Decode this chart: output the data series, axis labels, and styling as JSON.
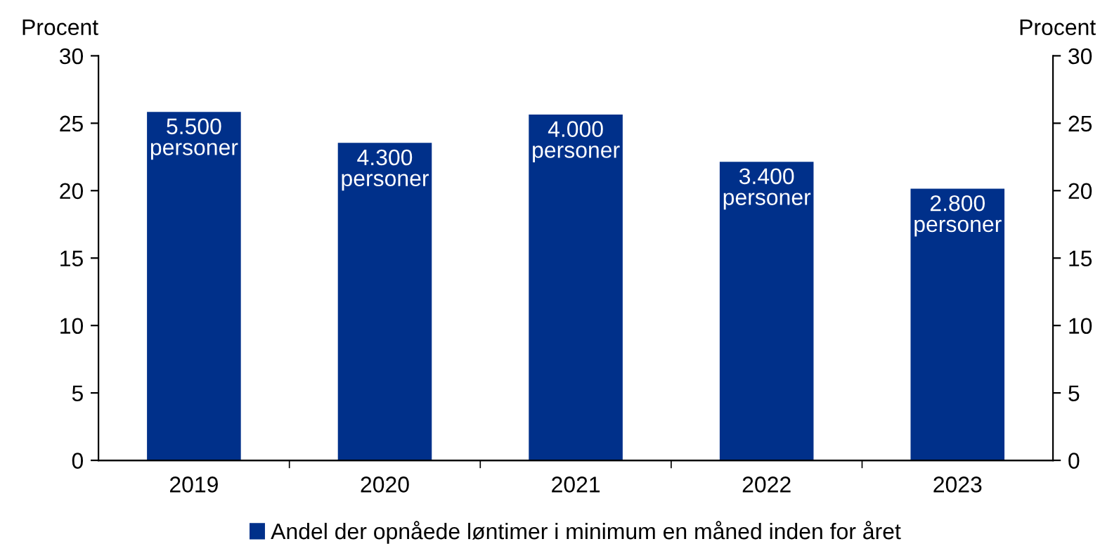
{
  "chart_data": {
    "type": "bar",
    "ylabel": "Procent",
    "y2label": "Procent",
    "categories": [
      "2019",
      "2020",
      "2021",
      "2022",
      "2023"
    ],
    "series": [
      {
        "name": "Andel der opnåede løntimer i minimum en måned inden for året",
        "color": "#00308a",
        "values": [
          25.9,
          23.6,
          25.7,
          22.2,
          20.2
        ]
      }
    ],
    "annotations": [
      "5.500\npersoner",
      "4.300\npersoner",
      "4.000\npersoner",
      "3.400\npersoner",
      "2.800\npersoner"
    ],
    "ylim": [
      0,
      30
    ],
    "yticks": [
      0,
      5,
      10,
      15,
      20,
      25,
      30
    ],
    "y2lim": [
      0,
      30
    ],
    "y2ticks": [
      0,
      5,
      10,
      15,
      20,
      25,
      30
    ],
    "grid": false,
    "legend": "bottom"
  }
}
